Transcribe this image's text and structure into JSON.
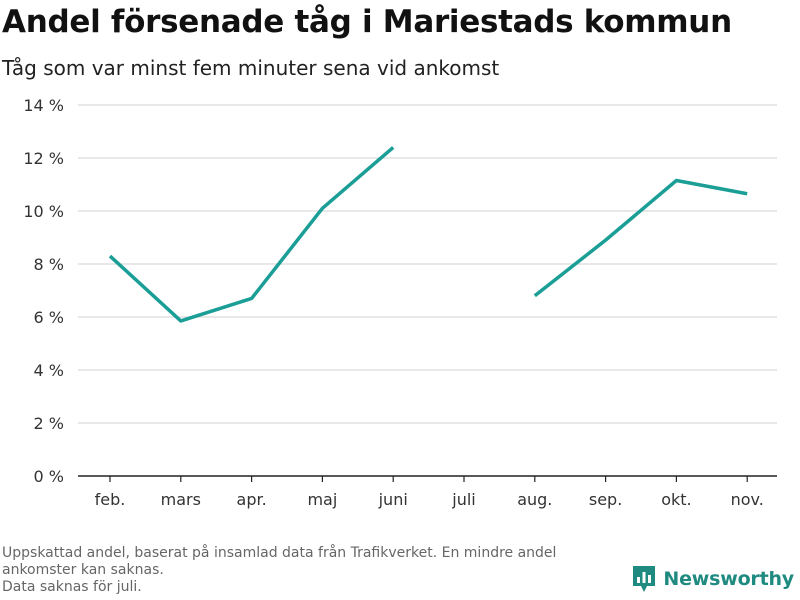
{
  "header": {
    "title": "Andel försenade tåg i Mariestads kommun",
    "subtitle": "Tåg som var minst fem minuter sena vid ankomst"
  },
  "footnote": {
    "line1": "Uppskattad andel, baserat på insamlad data från Trafikverket. En mindre andel",
    "line2": "ankomster kan saknas.",
    "line3": "Data saknas för juli."
  },
  "brand": {
    "name": "Newsworthy",
    "color": "#1f8a80",
    "icon": "bar-chart-badge-icon"
  },
  "chart_data": {
    "type": "line",
    "categories": [
      "feb.",
      "mars",
      "apr.",
      "maj",
      "juni",
      "juli",
      "aug.",
      "sep.",
      "okt.",
      "nov."
    ],
    "series": [
      {
        "color": "#1a9e96",
        "values": [
          8.3,
          5.85,
          6.7,
          10.1,
          12.4,
          null,
          6.8,
          8.9,
          11.15,
          10.65
        ]
      }
    ],
    "yticks": [
      0,
      2,
      4,
      6,
      8,
      10,
      12,
      14
    ],
    "ytick_labels": [
      "0 %",
      "2 %",
      "4 %",
      "6 %",
      "8 %",
      "10 %",
      "12 %",
      "14 %"
    ],
    "ylim": [
      0,
      14
    ],
    "grid": true,
    "xlabel": "",
    "ylabel": ""
  }
}
